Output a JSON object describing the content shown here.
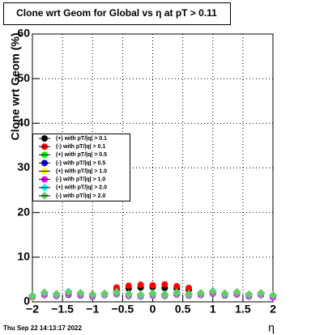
{
  "chart_data": {
    "type": "scatter",
    "title": "Clone wrt Geom for Global vs   η at pT > 0.11",
    "x_label": "η",
    "y_label": "Clone wrt Geom (%)",
    "footer": "Thu Sep 22 14:13:17 2022",
    "x": [
      -2.0,
      -1.8,
      -1.6,
      -1.4,
      -1.2,
      -1.0,
      -0.8,
      -0.6,
      -0.4,
      -0.2,
      0.0,
      0.2,
      0.4,
      0.6,
      0.8,
      1.0,
      1.2,
      1.4,
      1.6,
      1.8,
      2.0
    ],
    "series": [
      {
        "name": "(+) with pT/|q| > 0.1",
        "color": "#000000",
        "marker": "circle",
        "values": [
          null,
          null,
          null,
          null,
          null,
          null,
          null,
          2.8,
          3.0,
          3.2,
          3.3,
          3.1,
          3.0,
          2.7,
          null,
          null,
          null,
          null,
          null,
          null,
          null
        ]
      },
      {
        "name": "(-) with pT/|q| > 0.1",
        "color": "#ff0000",
        "marker": "circle",
        "values": [
          null,
          null,
          null,
          null,
          null,
          null,
          null,
          3.2,
          3.6,
          3.8,
          3.7,
          3.9,
          3.5,
          3.1,
          null,
          null,
          null,
          null,
          null,
          null,
          null
        ]
      },
      {
        "name": "(+) with pT/|q| > 0.5",
        "color": "#00ff00",
        "marker": "circle",
        "values": [
          1.2,
          1.8,
          1.5,
          2.0,
          1.7,
          1.4,
          1.6,
          1.9,
          1.5,
          1.3,
          1.6,
          1.4,
          1.8,
          1.5,
          1.7,
          2.2,
          1.6,
          1.9,
          1.4,
          1.7,
          1.3
        ]
      },
      {
        "name": "(-) with pT/|q| > 0.5",
        "color": "#0000ff",
        "marker": "circle",
        "values": [
          1.0,
          1.5,
          1.3,
          1.6,
          1.4,
          1.2,
          1.5,
          1.7,
          1.3,
          1.2,
          1.4,
          1.3,
          1.6,
          1.4,
          1.5,
          1.8,
          1.4,
          1.6,
          1.2,
          1.5,
          1.1
        ]
      },
      {
        "name": "(+) with pT/|q| > 1.0",
        "color": "#ffff00",
        "marker": "circle",
        "values": [
          0.9,
          1.6,
          1.4,
          1.8,
          1.5,
          1.3,
          1.6,
          1.8,
          1.4,
          1.3,
          1.5,
          1.4,
          1.7,
          1.5,
          1.6,
          1.9,
          1.5,
          1.7,
          1.3,
          1.6,
          1.2
        ]
      },
      {
        "name": "(-) with pT/|q| > 1.0",
        "color": "#ff00ff",
        "marker": "circle",
        "values": [
          1.1,
          1.7,
          1.5,
          1.9,
          1.6,
          1.4,
          1.7,
          1.9,
          1.5,
          1.4,
          1.6,
          1.5,
          1.8,
          1.6,
          1.7,
          2.0,
          1.6,
          1.8,
          1.4,
          1.7,
          1.0
        ]
      },
      {
        "name": "(+) with pT/|q| > 2.0",
        "color": "#00ffff",
        "marker": "diamond",
        "values": [
          1.3,
          2.0,
          1.7,
          2.3,
          1.9,
          1.6,
          1.8,
          2.1,
          1.7,
          1.5,
          1.8,
          1.6,
          2.0,
          1.7,
          1.9,
          2.4,
          1.8,
          2.1,
          1.6,
          1.9,
          1.4
        ]
      },
      {
        "name": "(-) with pT/|q| > 2.0",
        "color": "#66cc66",
        "marker": "diamond",
        "values": [
          1.4,
          2.1,
          1.8,
          2.2,
          2.0,
          1.7,
          1.9,
          2.2,
          1.8,
          1.6,
          1.9,
          1.7,
          2.1,
          1.8,
          2.0,
          2.3,
          1.9,
          2.2,
          1.7,
          2.0,
          1.5
        ]
      }
    ],
    "xlim": [
      -2,
      2
    ],
    "ylim": [
      0,
      60
    ],
    "xticks": [
      {
        "value": -2,
        "label": "−2"
      },
      {
        "value": -1.5,
        "label": "−1.5"
      },
      {
        "value": -1,
        "label": "−1"
      },
      {
        "value": -0.5,
        "label": "−0.5"
      },
      0,
      0.5,
      1,
      1.5,
      2
    ],
    "yticks": [
      0,
      10,
      20,
      30,
      40,
      50,
      60
    ],
    "grid": true,
    "legend": "center left"
  }
}
